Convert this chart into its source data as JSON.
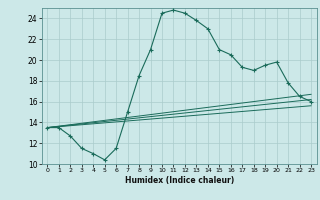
{
  "xlabel": "Humidex (Indice chaleur)",
  "background_color": "#cce8e8",
  "grid_color": "#aacccc",
  "line_color": "#1a6b5a",
  "xlim": [
    -0.5,
    23.5
  ],
  "ylim": [
    10,
    25
  ],
  "xticks": [
    0,
    1,
    2,
    3,
    4,
    5,
    6,
    7,
    8,
    9,
    10,
    11,
    12,
    13,
    14,
    15,
    16,
    17,
    18,
    19,
    20,
    21,
    22,
    23
  ],
  "yticks": [
    10,
    12,
    14,
    16,
    18,
    20,
    22,
    24
  ],
  "main_line": {
    "x": [
      0,
      1,
      2,
      3,
      4,
      5,
      6,
      7,
      8,
      9,
      10,
      11,
      12,
      13,
      14,
      15,
      16,
      17,
      18,
      19,
      20,
      21,
      22,
      23
    ],
    "y": [
      13.5,
      13.5,
      12.7,
      11.5,
      11.0,
      10.4,
      11.5,
      15.0,
      18.5,
      21.0,
      24.5,
      24.8,
      24.5,
      23.8,
      23.0,
      21.0,
      20.5,
      19.3,
      19.0,
      19.5,
      19.8,
      17.8,
      16.5,
      16.0
    ]
  },
  "trend_lines": [
    {
      "x": [
        0,
        23
      ],
      "y": [
        13.5,
        16.2
      ]
    },
    {
      "x": [
        0,
        23
      ],
      "y": [
        13.5,
        16.7
      ]
    },
    {
      "x": [
        0,
        23
      ],
      "y": [
        13.5,
        15.6
      ]
    }
  ]
}
